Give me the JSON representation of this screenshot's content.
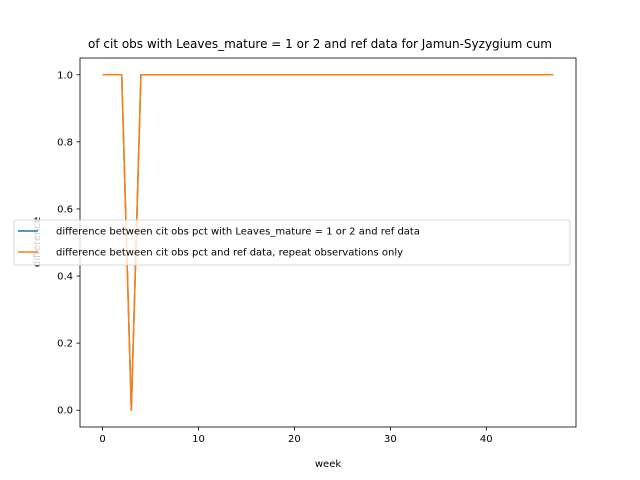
{
  "chart_data": {
    "type": "line",
    "title": "of cit obs with Leaves_mature = 1 or 2 and ref data for Jamun-Syzygium cum",
    "xlabel": "week",
    "ylabel": "difference",
    "xlim": [
      -2.35,
      49.35
    ],
    "ylim": [
      -0.05,
      1.05
    ],
    "xticks": [
      0,
      10,
      20,
      30,
      40
    ],
    "yticks": [
      0.0,
      0.2,
      0.4,
      0.6,
      0.8,
      1.0
    ],
    "xtick_labels": [
      "0",
      "10",
      "20",
      "30",
      "40"
    ],
    "ytick_labels": [
      "0.0",
      "0.2",
      "0.4",
      "0.6",
      "0.8",
      "1.0"
    ],
    "grid": false,
    "legend_position": "center-left",
    "x": [
      0,
      1,
      2,
      3,
      4,
      5,
      6,
      7,
      8,
      9,
      10,
      11,
      12,
      13,
      14,
      15,
      16,
      17,
      18,
      19,
      20,
      21,
      22,
      23,
      24,
      25,
      26,
      27,
      28,
      29,
      30,
      31,
      32,
      33,
      34,
      35,
      36,
      37,
      38,
      39,
      40,
      41,
      42,
      43,
      44,
      45,
      46,
      47
    ],
    "series": [
      {
        "name": "difference between cit obs pct with Leaves_mature = 1 or 2 and ref data",
        "color": "#1f77b4",
        "values": [
          1,
          1,
          1,
          0,
          1,
          1,
          1,
          1,
          1,
          1,
          1,
          1,
          1,
          1,
          1,
          1,
          1,
          1,
          1,
          1,
          1,
          1,
          1,
          1,
          1,
          1,
          1,
          1,
          1,
          1,
          1,
          1,
          1,
          1,
          1,
          1,
          1,
          1,
          1,
          1,
          1,
          1,
          1,
          1,
          1,
          1,
          1,
          1
        ]
      },
      {
        "name": "difference between cit obs pct and ref data, repeat observations only",
        "color": "#ff7f0e",
        "values": [
          1,
          1,
          1,
          0,
          1,
          1,
          1,
          1,
          1,
          1,
          1,
          1,
          1,
          1,
          1,
          1,
          1,
          1,
          1,
          1,
          1,
          1,
          1,
          1,
          1,
          1,
          1,
          1,
          1,
          1,
          1,
          1,
          1,
          1,
          1,
          1,
          1,
          1,
          1,
          1,
          1,
          1,
          1,
          1,
          1,
          1,
          1,
          1
        ]
      }
    ]
  }
}
